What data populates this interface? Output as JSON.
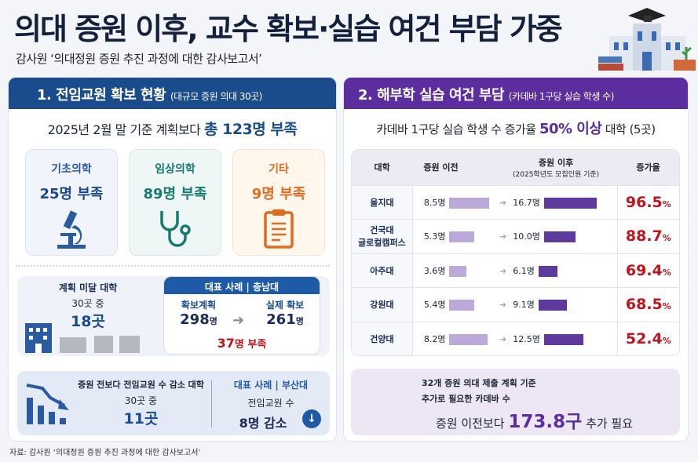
{
  "header": {
    "title": "의대 증원 이후, 교수 확보·실습 여건 부담 가중",
    "subtitle": "감사원 ‘의대정원 증원 추진 과정에 대한 감사보고서’"
  },
  "colors": {
    "navy": "#1a4b8c",
    "purple": "#5b2d9e",
    "teal": "#177a6e",
    "orange": "#e06b1f",
    "red": "#c0141c"
  },
  "left": {
    "title": "1. 전임교원 확보 현황",
    "title_note": "(대규모 증원 의대 30곳)",
    "summary_prefix": "2025년 2월 말 기준 계획보다",
    "summary_highlight": "총 123명 부족",
    "categories": [
      {
        "label": "기초의학",
        "value": "25명 부족",
        "icon": "microscope-icon"
      },
      {
        "label": "임상의학",
        "value": "89명 부족",
        "icon": "stethoscope-icon"
      },
      {
        "label": "기타",
        "value": "9명 부족",
        "icon": "clipboard-icon"
      }
    ],
    "unmet": {
      "label": "계획 미달 대학",
      "of": "30곳 중",
      "value": "18곳"
    },
    "case1": {
      "header": "대표 사례 | 충남대",
      "plan_label": "확보계획",
      "plan_value": "298",
      "actual_label": "실제 확보",
      "actual_value": "261",
      "unit": "명",
      "shortfall_num": "37",
      "shortfall_text": "명 부족"
    },
    "decrease": {
      "label": "증원 전보다 전임교원 수 감소 대학",
      "of": "30곳 중",
      "value": "11곳"
    },
    "case2": {
      "header": "대표 사례 | 부산대",
      "label": "전임교원 수",
      "value": "8명 감소"
    }
  },
  "right": {
    "title": "2. 해부학 실습 여건 부담",
    "title_note": "(카데바 1구당 실습 학생 수)",
    "summary_prefix": "카데바 1구당 실습 학생 수 증가율",
    "summary_highlight": "50% 이상",
    "summary_suffix": "대학 (5곳)",
    "table": {
      "headers": [
        "대학",
        "증원 이전",
        "증원 이후",
        "(2025학년도 모집인원 기준)",
        "증가율"
      ],
      "rows": [
        {
          "univ": "을지대",
          "univ2": "",
          "before": 8.5,
          "before_label": "8.5명",
          "after": 16.7,
          "after_label": "16.7명",
          "rate": "96.5"
        },
        {
          "univ": "건국대",
          "univ2": "글로컬캠퍼스",
          "before": 5.3,
          "before_label": "5.3명",
          "after": 10.0,
          "after_label": "10.0명",
          "rate": "88.7"
        },
        {
          "univ": "아주대",
          "univ2": "",
          "before": 3.6,
          "before_label": "3.6명",
          "after": 6.1,
          "after_label": "6.1명",
          "rate": "69.4"
        },
        {
          "univ": "강원대",
          "univ2": "",
          "before": 5.4,
          "before_label": "5.4명",
          "after": 9.1,
          "after_label": "9.1명",
          "rate": "68.5"
        },
        {
          "univ": "건양대",
          "univ2": "",
          "before": 8.2,
          "before_label": "8.2명",
          "after": 12.5,
          "after_label": "12.5명",
          "rate": "52.4"
        }
      ],
      "rate_unit": "%"
    },
    "note_line1": "32개 증원 의대 제출 계획 기준",
    "note_line2": "추가로 필요한 카데바 수",
    "note_prefix": "증원 이전보다",
    "note_highlight": "173.8구",
    "note_suffix": "추가 필요"
  },
  "footer": {
    "source": "자료: 감사원 ‘의대정원 증원 추진 과정에 대한 감사보고서’"
  }
}
